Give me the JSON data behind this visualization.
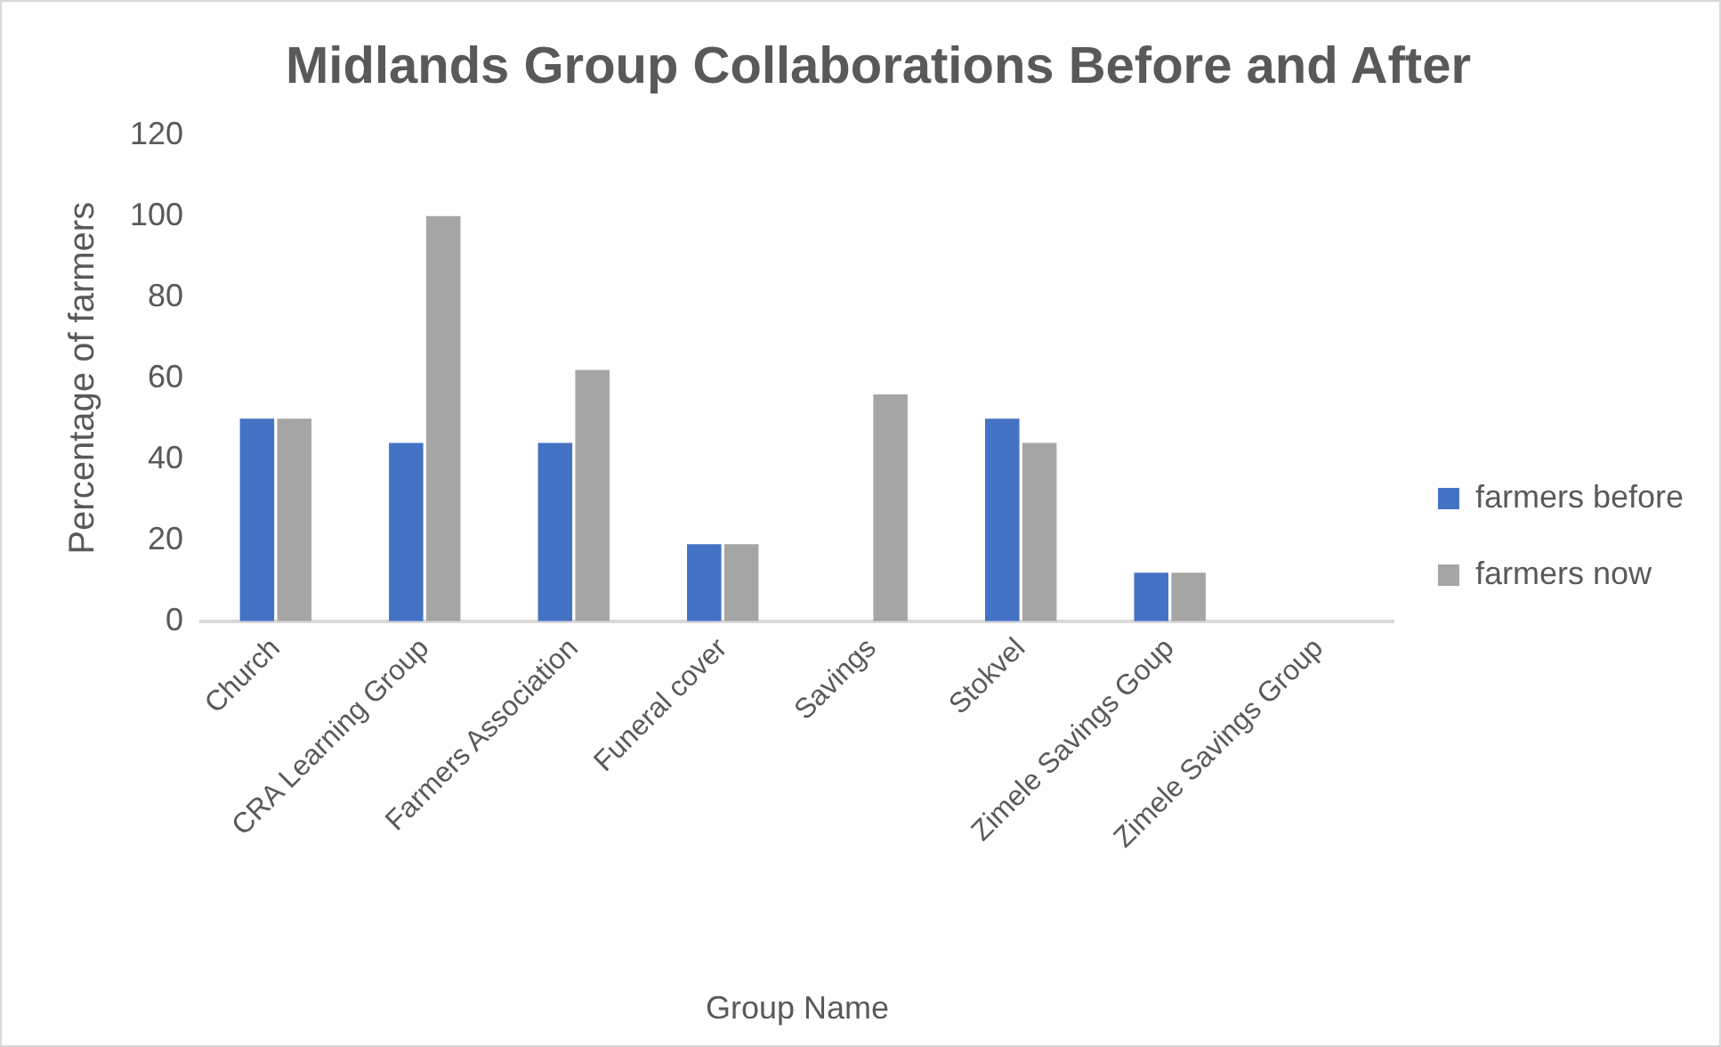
{
  "chart_data": {
    "type": "bar",
    "title": "Midlands Group Collaborations Before and After",
    "xlabel": "Group Name",
    "ylabel": "Percentage of farmers",
    "categories": [
      "Church",
      "CRA Learning Group",
      "Farmers Association",
      "Funeral cover",
      "Savings",
      "Stokvel",
      "Zimele Savings Goup",
      "Zimele Savings Group"
    ],
    "series": [
      {
        "name": "farmers before",
        "color": "#4472c4",
        "values": [
          50,
          44,
          44,
          19,
          0,
          50,
          12,
          0
        ]
      },
      {
        "name": "farmers now",
        "color": "#a5a5a5",
        "values": [
          50,
          100,
          62,
          19,
          56,
          44,
          12,
          0
        ]
      }
    ],
    "ylim": [
      0,
      120
    ],
    "yticks": [
      0,
      20,
      40,
      60,
      80,
      100,
      120
    ],
    "grid": false,
    "legend": "right"
  }
}
